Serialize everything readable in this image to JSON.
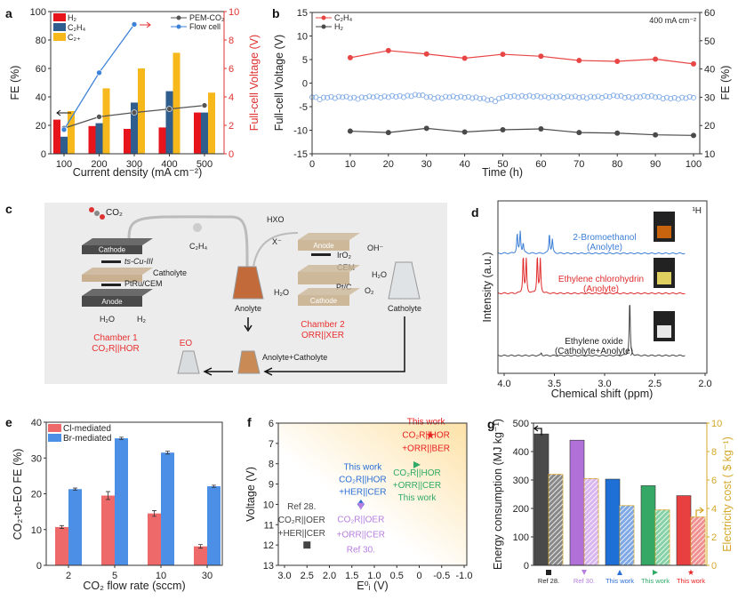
{
  "panels": {
    "a": "a",
    "b": "b",
    "c": "c",
    "d": "d",
    "e": "e",
    "f": "f",
    "g": "g"
  },
  "chart_data": [
    {
      "id": "a",
      "type": "bar",
      "categories": [
        "100",
        "200",
        "300",
        "400",
        "500"
      ],
      "xlabel": "Current density (mA cm⁻²)",
      "ylabel": "FE (%)",
      "ylim": [
        0,
        100
      ],
      "yticks": [
        0,
        20,
        40,
        60,
        80,
        100
      ],
      "y2label": "Full-cell Voltage (V)",
      "y2lim": [
        0,
        10
      ],
      "y2ticks": [
        0,
        2,
        4,
        6,
        8,
        10
      ],
      "series": [
        {
          "name": "H₂",
          "color": "#e8141c",
          "values": [
            24,
            19.5,
            17.5,
            18.5,
            29
          ]
        },
        {
          "name": "C₂H₄",
          "color": "#2f5e8e",
          "values": [
            12,
            21.5,
            36,
            44,
            29
          ]
        },
        {
          "name": "C₂₊",
          "color": "#f7b81b",
          "values": [
            30,
            46,
            60,
            71,
            43
          ]
        }
      ],
      "lines": [
        {
          "name": "PEM-CO₂",
          "color": "#555555",
          "axis": "right",
          "values": [
            1.8,
            2.6,
            2.9,
            3.15,
            3.4
          ]
        },
        {
          "name": "Flow cell",
          "color": "#3c82d8",
          "axis": "right",
          "values": [
            1.7,
            5.7,
            9.1,
            null,
            null
          ]
        }
      ]
    },
    {
      "id": "b",
      "type": "line",
      "xlabel": "Time (h)",
      "xlim": [
        0,
        100
      ],
      "xticks": [
        0,
        10,
        20,
        30,
        40,
        50,
        60,
        70,
        80,
        90,
        100
      ],
      "ylabel": "Full-cell Voltage (V)",
      "ylim": [
        -15,
        15
      ],
      "yticks": [
        -15,
        -10,
        -5,
        0,
        5,
        10,
        15
      ],
      "y2label": "FE (%)",
      "y2lim": [
        10,
        60
      ],
      "y2ticks": [
        10,
        20,
        30,
        40,
        50,
        60
      ],
      "annotation": "400 mA cm⁻²",
      "x": [
        10,
        20,
        30,
        40,
        50,
        60,
        70,
        80,
        90,
        100
      ],
      "series": [
        {
          "name": "C₂H₄",
          "color": "#e84545",
          "axis": "right",
          "values": [
            44,
            46.5,
            45.3,
            43.8,
            45.2,
            44.5,
            43,
            42.7,
            43.5,
            41.8
          ]
        },
        {
          "name": "H₂",
          "color": "#4a4a4a",
          "axis": "right",
          "values": [
            18,
            17.5,
            19,
            17.7,
            18.5,
            18.8,
            17.5,
            17.3,
            16.7,
            16.5
          ]
        }
      ],
      "voltage": {
        "color": "#7aa6e6",
        "axis": "left",
        "x": [
          0,
          2,
          4,
          6,
          8,
          10,
          12,
          14,
          16,
          18,
          20,
          22,
          24,
          26,
          28,
          30,
          32,
          34,
          36,
          38,
          40,
          42,
          44,
          46,
          48,
          50,
          52,
          54,
          56,
          58,
          60,
          62,
          64,
          66,
          68,
          70,
          72,
          74,
          76,
          78,
          80,
          82,
          84,
          86,
          88,
          90,
          92,
          94,
          96,
          98,
          100
        ],
        "values": [
          -3.0,
          -3.5,
          -3.1,
          -3.2,
          -3.0,
          -3.2,
          -3.4,
          -3.1,
          -3.0,
          -3.1,
          -3.0,
          -2.9,
          -3.0,
          -2.8,
          -2.6,
          -3.0,
          -3.3,
          -3.2,
          -3.0,
          -3.1,
          -3.1,
          -3.2,
          -3.3,
          -3.6,
          -3.9,
          -3.1,
          -2.9,
          -3.0,
          -2.9,
          -2.9,
          -3.0,
          -3.1,
          -3.0,
          -3.1,
          -3.0,
          -3.1,
          -3.2,
          -3.0,
          -3.1,
          -2.9,
          -2.8,
          -3.1,
          -3.2,
          -3.0,
          -2.9,
          -3.0,
          -3.3,
          -3.3,
          -3.4,
          -3.2,
          -3.1
        ]
      }
    },
    {
      "id": "d",
      "type": "line",
      "xlabel": "Chemical shift (ppm)",
      "ylabel": "Intensity (a.u.)",
      "xlim": [
        4.0,
        2.0
      ],
      "xticks": [
        4.0,
        3.5,
        3.0,
        2.5,
        2.0
      ],
      "corner_label": "¹H",
      "series": [
        {
          "name": "2-Bromoethanol",
          "sub": "(Anolyte)",
          "color": "#3c7fd6",
          "peaks": [
            [
              3.87,
              1.0
            ],
            [
              3.84,
              1.1
            ],
            [
              3.81,
              0.5
            ],
            [
              3.55,
              1.0
            ],
            [
              3.52,
              0.7
            ]
          ]
        },
        {
          "name": "Ethylene chlorohydrin",
          "sub": "(Anolyte)",
          "color": "#e02a2a",
          "peaks": [
            [
              3.81,
              1.0
            ],
            [
              3.78,
              0.9
            ],
            [
              3.67,
              1.0
            ],
            [
              3.64,
              0.9
            ]
          ]
        },
        {
          "name": "Ethylene oxide",
          "sub": "(Catholyte+Anolyte)",
          "color": "#444444",
          "peaks": [
            [
              2.75,
              1.0
            ],
            [
              3.63,
              0.05
            ]
          ]
        }
      ]
    },
    {
      "id": "e",
      "type": "bar",
      "categories": [
        "2",
        "5",
        "10",
        "30"
      ],
      "xlabel": "CO₂ flow rate (sccm)",
      "ylabel": "CO₂-to-EO FE (%)",
      "ylim": [
        0,
        40
      ],
      "yticks": [
        0,
        10,
        20,
        30,
        40
      ],
      "series": [
        {
          "name": "Cl-mediated",
          "color": "#ee6a6a",
          "values": [
            10.7,
            19.5,
            14.5,
            5.3
          ],
          "errors": [
            0.4,
            1.1,
            0.8,
            0.5
          ]
        },
        {
          "name": "Br-mediated",
          "color": "#4b8fe6",
          "values": [
            21.3,
            35.5,
            31.5,
            22.1
          ],
          "errors": [
            0.3,
            0.3,
            0.4,
            0.3
          ]
        }
      ]
    },
    {
      "id": "f",
      "type": "scatter",
      "xlabel": "E⁰ᵢ (V)",
      "ylabel": "Voltage (V)",
      "xlim": [
        3.0,
        -1.0
      ],
      "xticks": [
        3.0,
        2.5,
        2.0,
        1.5,
        1.0,
        0.5,
        0,
        -0.5,
        -1.0
      ],
      "ylim": [
        6,
        13
      ],
      "yticks": [
        6,
        7,
        8,
        9,
        10,
        11,
        12,
        13
      ],
      "points": [
        {
          "x": 2.5,
          "y": 12.0,
          "marker": "square",
          "color": "#444444",
          "labels": [
            "Ref 28.",
            "CO₂R||OER",
            "+HER||CER"
          ]
        },
        {
          "x": 1.3,
          "y": 10.0,
          "marker": "diamond",
          "color": "#2a6fd6",
          "labels": [
            "This work",
            "CO₂R||HOR",
            "+HER||CER"
          ]
        },
        {
          "x": 1.3,
          "y": 10.1,
          "marker": "triangle-down",
          "color": "#b77ee0",
          "labels": [
            "CO₂R||OER",
            "+ORR||CER",
            "Ref 30."
          ]
        },
        {
          "x": 0.05,
          "y": 8.05,
          "marker": "triangle-right",
          "color": "#2eaa66",
          "labels": [
            "CO₂R||HOR",
            "+ORR||CER",
            "This work"
          ]
        },
        {
          "x": -0.25,
          "y": 6.6,
          "marker": "star",
          "color": "#e82020",
          "labels": [
            "This work",
            "CO₂R||HOR",
            "+ORR||BER"
          ]
        }
      ]
    },
    {
      "id": "g",
      "type": "bar",
      "categories": [
        "Ref 28.",
        "Ref 30.",
        "This work",
        "This work",
        "This work"
      ],
      "category_colors": [
        "#222222",
        "#b77ee0",
        "#2a6fd6",
        "#2eaa66",
        "#e82020"
      ],
      "markers": [
        "square",
        "triangle-down",
        "triangle-up",
        "triangle-right",
        "star"
      ],
      "ylabel": "Energy consumption (MJ kg⁻¹)",
      "ylim": [
        0,
        500
      ],
      "yticks": [
        0,
        100,
        200,
        300,
        400,
        500
      ],
      "y2label": "Electricity cost ( $ kg⁻¹)",
      "y2lim": [
        0,
        10
      ],
      "y2ticks": [
        0,
        2,
        4,
        6,
        8,
        10
      ],
      "y2color": "#d4a82a",
      "series": [
        {
          "name": "Energy consumption",
          "colors": [
            "#4a4a4a",
            "#b070d8",
            "#1e6fd6",
            "#36a866",
            "#e84040"
          ],
          "values": [
            462,
            440,
            303,
            280,
            245
          ]
        },
        {
          "name": "Electricity cost",
          "hatched": true,
          "colors": [
            "#888888",
            "#d9b6ef",
            "#7fa8e6",
            "#86d2a6",
            "#f09090"
          ],
          "values": [
            6.4,
            6.1,
            4.2,
            3.9,
            3.4
          ]
        }
      ]
    }
  ],
  "diagram_c": {
    "labels": {
      "co2": "CO₂",
      "c2h4": "C₂H₄",
      "hxo": "HXO",
      "x": "X⁻",
      "cathode1": "Cathode",
      "tscu": "ts-Cu-III",
      "catholyte_in": "Catholyte",
      "ptru": "PtRu/CEM",
      "anode1": "Anode",
      "h2o1": "H₂O",
      "h2": "H₂",
      "chamber1": "Chamber 1",
      "chamber1_sub": "CO₂R||HOR",
      "anolyte": "Anolyte",
      "anode2": "Anode",
      "iro2": "IrO₂",
      "cem": "CEM",
      "ptc": "Pt/C",
      "cathode2": "Cathode",
      "oh": "OH⁻",
      "h2o2": "H₂O",
      "o2": "O₂",
      "h2o3": "H₂O",
      "catholyte": "Catholyte",
      "chamber2": "Chamber 2",
      "chamber2_sub": "ORR||XER",
      "eo": "EO",
      "mix": "Anolyte+Catholyte"
    }
  }
}
